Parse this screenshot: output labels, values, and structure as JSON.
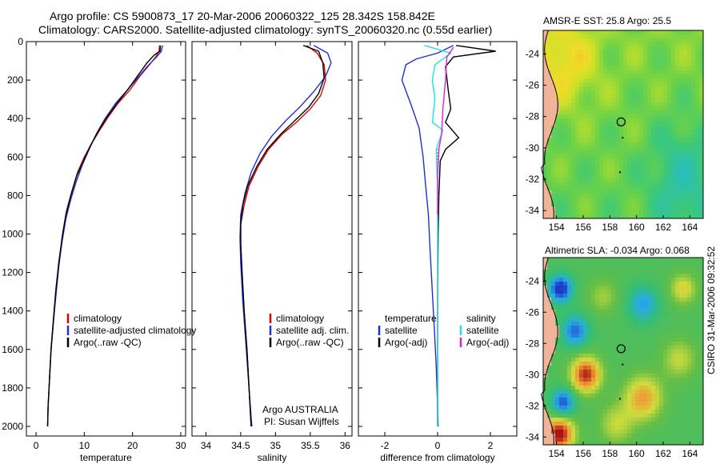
{
  "header": {
    "title_line1": "Argo profile: CS 5900873_17 20-Mar-2006 20060322_125 28.342S 158.842E",
    "title_line2": "Climatology: CARS2000. Satellite-adjusted climatology: synTS_20060320.nc (0.55d earlier)"
  },
  "colors": {
    "climatology": "#e00000",
    "satellite": "#1f2fd8",
    "argo": "#000000",
    "sal_satellite": "#22e0e8",
    "sal_argo": "#e020e0"
  },
  "chart_data": [
    {
      "type": "line",
      "id": "temperature",
      "xlabel": "temperature",
      "ylabel": "",
      "xlim": [
        -2,
        31
      ],
      "ylim": [
        2050,
        0
      ],
      "xticks": [
        "0",
        "10",
        "20",
        "30"
      ],
      "xtick_values": [
        0,
        10,
        20,
        30
      ],
      "yticks": [
        "0",
        "200",
        "400",
        "600",
        "800",
        "1000",
        "1200",
        "1400",
        "1600",
        "1800",
        "2000"
      ],
      "ytick_values": [
        0,
        200,
        400,
        600,
        800,
        1000,
        1200,
        1400,
        1600,
        1800,
        2000
      ],
      "legend": [
        "climatology",
        "satellite-adjusted climatology",
        "Argo(..raw -QC)"
      ],
      "series": [
        {
          "name": "climatology",
          "color": "#e00000",
          "points": [
            [
              25.6,
              20
            ],
            [
              25.5,
              50
            ],
            [
              24.8,
              80
            ],
            [
              23.5,
              120
            ],
            [
              21.5,
              180
            ],
            [
              19.5,
              250
            ],
            [
              17,
              320
            ],
            [
              15,
              390
            ],
            [
              13.2,
              460
            ],
            [
              11.5,
              530
            ],
            [
              10,
              600
            ],
            [
              8.6,
              680
            ],
            [
              7.4,
              780
            ],
            [
              6.3,
              880
            ],
            [
              5.5,
              1000
            ],
            [
              4.8,
              1150
            ],
            [
              4.2,
              1300
            ],
            [
              3.6,
              1450
            ],
            [
              3.1,
              1600
            ],
            [
              2.8,
              1750
            ],
            [
              2.5,
              1900
            ],
            [
              2.4,
              2000
            ]
          ]
        },
        {
          "name": "satellite-adjusted climatology",
          "color": "#1f2fd8",
          "points": [
            [
              26.2,
              20
            ],
            [
              26,
              50
            ],
            [
              25,
              80
            ],
            [
              23,
              130
            ],
            [
              21,
              190
            ],
            [
              19,
              250
            ],
            [
              16.5,
              320
            ],
            [
              14.3,
              400
            ],
            [
              12.5,
              480
            ],
            [
              11,
              560
            ],
            [
              9.6,
              640
            ],
            [
              8.3,
              730
            ],
            [
              7.2,
              820
            ],
            [
              6.2,
              920
            ],
            [
              5.4,
              1040
            ],
            [
              4.7,
              1170
            ],
            [
              4.1,
              1310
            ],
            [
              3.6,
              1460
            ],
            [
              3.1,
              1610
            ],
            [
              2.8,
              1760
            ],
            [
              2.5,
              1900
            ],
            [
              2.4,
              2000
            ]
          ]
        },
        {
          "name": "Argo(..raw -QC)",
          "color": "#000000",
          "points": [
            [
              25.8,
              20
            ],
            [
              25.7,
              50
            ],
            [
              24.5,
              70
            ],
            [
              23,
              110
            ],
            [
              21,
              180
            ],
            [
              19,
              250
            ],
            [
              16.8,
              320
            ],
            [
              14.8,
              390
            ],
            [
              13,
              460
            ],
            [
              11.3,
              540
            ],
            [
              9.8,
              620
            ],
            [
              8.4,
              700
            ],
            [
              7.2,
              800
            ],
            [
              6.2,
              900
            ],
            [
              5.4,
              1020
            ],
            [
              4.7,
              1150
            ],
            [
              4.1,
              1290
            ],
            [
              3.6,
              1440
            ],
            [
              3.1,
              1600
            ],
            [
              2.8,
              1750
            ],
            [
              2.5,
              1900
            ],
            [
              2.4,
              2000
            ]
          ]
        }
      ]
    },
    {
      "type": "line",
      "id": "salinity",
      "xlabel": "salinity",
      "xlim": [
        33.8,
        36.1
      ],
      "ylim": [
        2050,
        0
      ],
      "xticks": [
        "34",
        "34.5",
        "35",
        "35.5",
        "36"
      ],
      "xtick_values": [
        34,
        34.5,
        35,
        35.5,
        36
      ],
      "legend": [
        "climatology",
        "satellite adj. clim.",
        "Argo(..raw -QC)"
      ],
      "annotation": [
        "Argo AUSTRALIA",
        "PI: Susan Wijffels"
      ],
      "series": [
        {
          "name": "climatology",
          "color": "#e00000",
          "points": [
            [
              35.45,
              20
            ],
            [
              35.6,
              60
            ],
            [
              35.7,
              120
            ],
            [
              35.72,
              200
            ],
            [
              35.65,
              280
            ],
            [
              35.5,
              350
            ],
            [
              35.3,
              420
            ],
            [
              35.1,
              480
            ],
            [
              34.9,
              560
            ],
            [
              34.75,
              650
            ],
            [
              34.62,
              750
            ],
            [
              34.55,
              850
            ],
            [
              34.5,
              950
            ],
            [
              34.5,
              1050
            ],
            [
              34.52,
              1200
            ],
            [
              34.55,
              1400
            ],
            [
              34.59,
              1600
            ],
            [
              34.62,
              1800
            ],
            [
              34.65,
              2000
            ]
          ]
        },
        {
          "name": "satellite adj. clim.",
          "color": "#1f2fd8",
          "points": [
            [
              35.55,
              20
            ],
            [
              35.75,
              60
            ],
            [
              35.8,
              110
            ],
            [
              35.72,
              180
            ],
            [
              35.55,
              260
            ],
            [
              35.35,
              340
            ],
            [
              35.15,
              410
            ],
            [
              34.95,
              490
            ],
            [
              34.78,
              580
            ],
            [
              34.65,
              680
            ],
            [
              34.56,
              790
            ],
            [
              34.5,
              900
            ],
            [
              34.49,
              1020
            ],
            [
              34.5,
              1150
            ],
            [
              34.53,
              1350
            ],
            [
              34.57,
              1550
            ],
            [
              34.61,
              1750
            ],
            [
              34.64,
              1900
            ],
            [
              34.66,
              2000
            ]
          ]
        },
        {
          "name": "Argo(..raw -QC)",
          "color": "#000000",
          "points": [
            [
              35.4,
              20
            ],
            [
              35.62,
              50
            ],
            [
              35.68,
              110
            ],
            [
              35.7,
              190
            ],
            [
              35.62,
              270
            ],
            [
              35.48,
              340
            ],
            [
              35.28,
              410
            ],
            [
              35.08,
              480
            ],
            [
              34.88,
              560
            ],
            [
              34.73,
              650
            ],
            [
              34.6,
              750
            ],
            [
              34.53,
              850
            ],
            [
              34.5,
              950
            ],
            [
              34.5,
              1050
            ],
            [
              34.52,
              1200
            ],
            [
              34.55,
              1400
            ],
            [
              34.59,
              1600
            ],
            [
              34.62,
              1800
            ],
            [
              34.65,
              2000
            ]
          ]
        }
      ]
    },
    {
      "type": "line",
      "id": "difference",
      "xlabel": "difference from climatology",
      "xlim": [
        -3,
        3
      ],
      "ylim": [
        2050,
        0
      ],
      "xticks": [
        "-2",
        "0",
        "2"
      ],
      "xtick_values": [
        -2,
        0,
        2
      ],
      "legend_headers": [
        "temperature",
        "salinity"
      ],
      "legend": [
        "satellite",
        "Argo(-adj)",
        "satellite",
        "Argo(-adj)"
      ],
      "series": [
        {
          "name": "temperature satellite",
          "color": "#1f2fd8",
          "points": [
            [
              0.6,
              20
            ],
            [
              0,
              60
            ],
            [
              -0.8,
              90
            ],
            [
              -1.2,
              120
            ],
            [
              -1.35,
              200
            ],
            [
              -1,
              330
            ],
            [
              -0.7,
              450
            ],
            [
              -0.55,
              600
            ],
            [
              -0.45,
              750
            ],
            [
              -0.35,
              900
            ],
            [
              -0.28,
              1100
            ],
            [
              -0.2,
              1300
            ],
            [
              -0.12,
              1500
            ],
            [
              -0.05,
              1700
            ],
            [
              0,
              1900
            ],
            [
              0.02,
              2000
            ]
          ]
        },
        {
          "name": "temperature Argo(-adj)",
          "color": "#000000",
          "points": [
            [
              0.7,
              20
            ],
            [
              2.2,
              50
            ],
            [
              0.6,
              80
            ],
            [
              0.3,
              130
            ],
            [
              0.4,
              250
            ],
            [
              0.5,
              350
            ],
            [
              0.3,
              420
            ],
            [
              0.8,
              500
            ],
            [
              0.3,
              560
            ],
            [
              0.1,
              620
            ],
            [
              0.05,
              800
            ],
            [
              0.02,
              1000
            ],
            [
              0,
              1300
            ],
            [
              0,
              1600
            ],
            [
              0,
              1900
            ],
            [
              0,
              2000
            ]
          ]
        },
        {
          "name": "salinity satellite",
          "color": "#22e0e8",
          "points": [
            [
              -0.5,
              20
            ],
            [
              0.5,
              60
            ],
            [
              -0.1,
              120
            ],
            [
              -0.2,
              200
            ],
            [
              -0.1,
              300
            ],
            [
              -0.2,
              420
            ],
            [
              0.2,
              460
            ],
            [
              -0.05,
              560
            ],
            [
              0,
              800
            ],
            [
              0,
              1100
            ],
            [
              0,
              1500
            ],
            [
              0,
              2000
            ]
          ]
        },
        {
          "name": "salinity Argo(-adj)",
          "color": "#e020e0",
          "points": [
            [
              0.6,
              30
            ],
            [
              0.35,
              80
            ],
            [
              0.3,
              200
            ],
            [
              0.2,
              350
            ],
            [
              0.15,
              480
            ],
            [
              0.05,
              560
            ],
            [
              0,
              700
            ],
            [
              0,
              900
            ]
          ]
        }
      ]
    }
  ],
  "maps": [
    {
      "title": "AMSR-E SST: 25.8 Argo: 25.5",
      "xticks": [
        "154",
        "156",
        "158",
        "160",
        "162",
        "164"
      ],
      "yticks": [
        "-24",
        "-26",
        "-28",
        "-30",
        "-32",
        "-34"
      ],
      "xlim": [
        153,
        165
      ],
      "ylim": [
        -22.5,
        -34.5
      ],
      "float_position": [
        158.842,
        -28.342
      ],
      "field": "sst"
    },
    {
      "title": "Altimetric SLA: -0.034 Argo: 0.068",
      "xticks": [
        "154",
        "156",
        "158",
        "160",
        "162",
        "164"
      ],
      "yticks": [
        "-24",
        "-26",
        "-28",
        "-30",
        "-32",
        "-34"
      ],
      "xlim": [
        153,
        165
      ],
      "ylim": [
        -22.5,
        -34.5
      ],
      "float_position": [
        158.842,
        -28.342
      ],
      "field": "sla"
    }
  ],
  "footer": {
    "stamp": "CSIRO 31-Mar-2006 09:32:52"
  }
}
